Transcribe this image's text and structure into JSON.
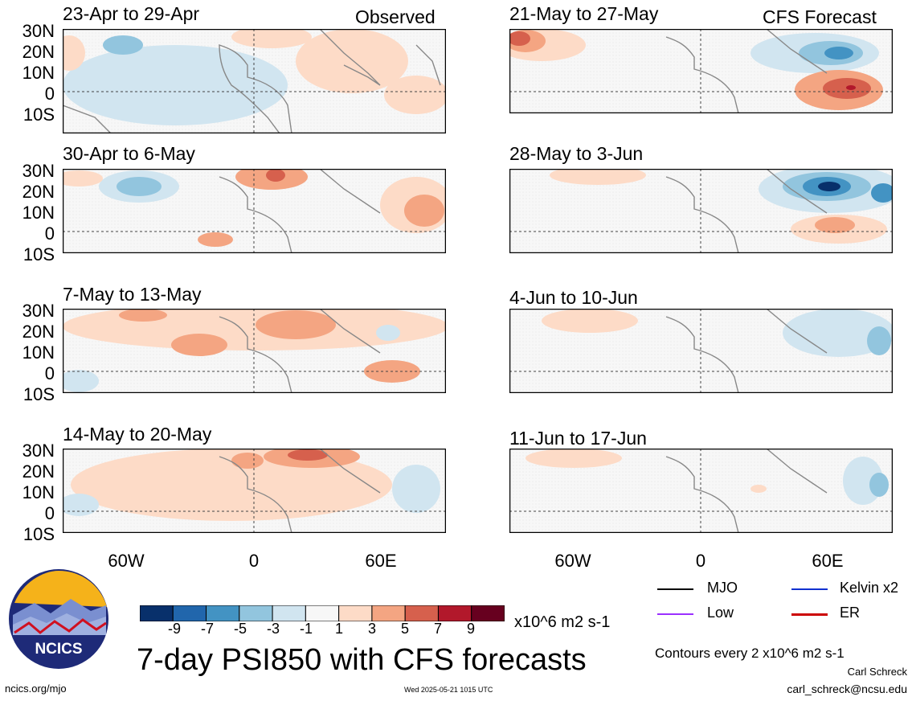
{
  "headers": {
    "observed": "Observed",
    "forecast": "CFS Forecast"
  },
  "panels": {
    "observed": [
      {
        "period": "23-Apr to 29-Apr"
      },
      {
        "period": "30-Apr to 6-May"
      },
      {
        "period": "7-May to 13-May"
      },
      {
        "period": "14-May to 20-May"
      }
    ],
    "forecast": [
      {
        "period": "21-May to 27-May"
      },
      {
        "period": "28-May to 3-Jun"
      },
      {
        "period": "4-Jun to 10-Jun"
      },
      {
        "period": "11-Jun to 17-Jun"
      }
    ]
  },
  "lat_labels": [
    "30N",
    "20N",
    "10N",
    "0",
    "10S"
  ],
  "lon_labels": [
    "60W",
    "0",
    "60E"
  ],
  "colorbar": {
    "labels": [
      "-9",
      "-7",
      "-5",
      "-3",
      "-1",
      "1",
      "3",
      "5",
      "7",
      "9"
    ],
    "colors": [
      "#08306b",
      "#2166ac",
      "#4393c3",
      "#92c5de",
      "#d1e5f0",
      "#f7f7f7",
      "#fddbc7",
      "#f4a582",
      "#d6604d",
      "#b2182b",
      "#67001f"
    ],
    "units": "x10^6 m2 s-1"
  },
  "legend": {
    "mjo": {
      "label": "MJO",
      "color": "#000000"
    },
    "kelvin": {
      "label": "Kelvin x2",
      "color": "#1030d0"
    },
    "low": {
      "label": "Low",
      "color": "#9b30ff"
    },
    "er": {
      "label": "ER",
      "color": "#cc0000"
    }
  },
  "title": "7-day PSI850 with CFS forecasts",
  "contour_note": "Contours every 2 x10^6 m2 s-1",
  "author": "Carl Schreck",
  "email": "carl_schreck@ncsu.edu",
  "url": "ncics.org/mjo",
  "timestamp": "Wed 2025-05-21 1015 UTC",
  "logo_text": "NCICS"
}
